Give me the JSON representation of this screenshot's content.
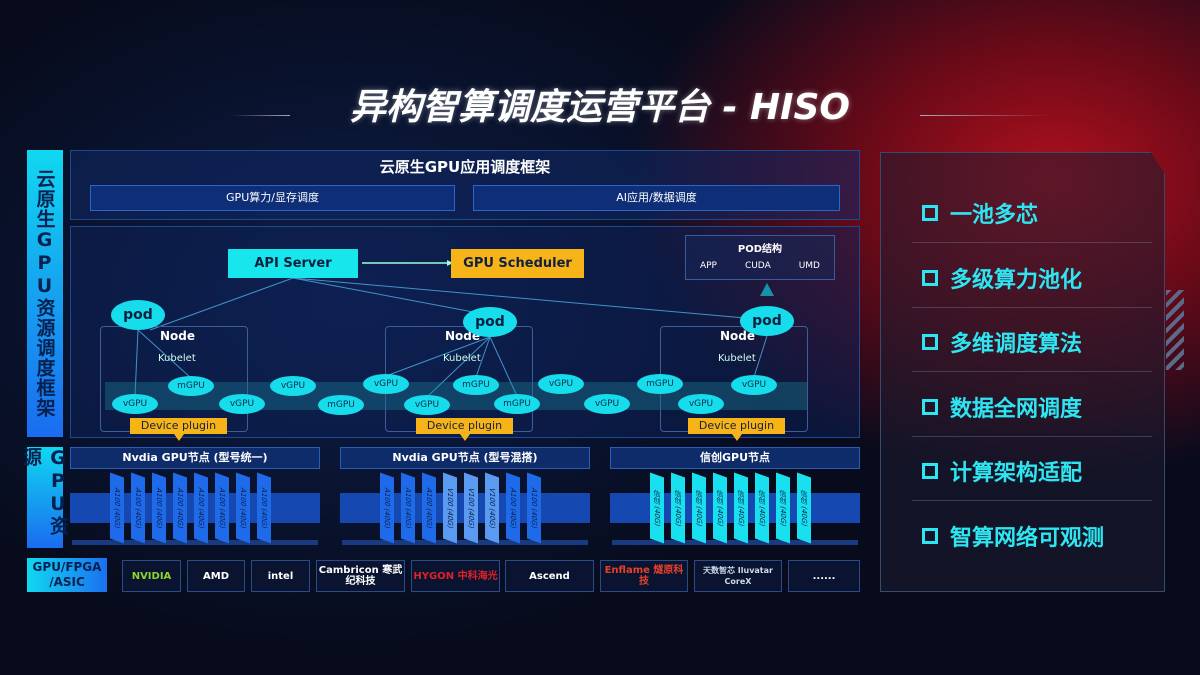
{
  "title": "异构智算调度运营平台 - HISO",
  "left_labels": {
    "framework": "云原生GPU资源调度框架",
    "resources": "GPU资源",
    "hardware": "GPU/FPGA /ASIC"
  },
  "framework": {
    "header": "云原生GPU应用调度框架",
    "bars": [
      "GPU算力/显存调度",
      "AI应用/数据调度"
    ]
  },
  "diagram": {
    "api_server": "API Server",
    "gpu_scheduler": "GPU Scheduler",
    "pod_structure": {
      "title": "POD结构",
      "items": [
        "APP",
        "CUDA",
        "UMD"
      ]
    },
    "pod": "pod",
    "node": "Node",
    "kubelet": "Kubelet",
    "device_plugin": "Device plugin",
    "virtual_gpus": [
      "vGPU",
      "mGPU",
      "vGPU",
      "vGPU",
      "mGPU",
      "vGPU",
      "vGPU",
      "mGPU",
      "mGPU",
      "vGPU",
      "vGPU",
      "mGPU",
      "vGPU",
      "vGPU"
    ]
  },
  "gpu_nodes": [
    {
      "title": "Nvdia GPU节点 (型号统一)",
      "cards": [
        "A100 (40G)",
        "A100 (40G)",
        "A100 (40G)",
        "A100 (40G)",
        "A100 (40G)",
        "A100 (40G)",
        "A100 (40G)",
        "A100 (40G)"
      ],
      "color": "#1e6ae8"
    },
    {
      "title": "Nvdia GPU节点 (型号混搭)",
      "cards": [
        "A100 (40G)",
        "A100 (40G)",
        "A100 (40G)",
        "V100 (40G)",
        "V100 (40G)",
        "V100 (40G)",
        "A100 (40G)",
        "A100 (40G)"
      ],
      "color": "#1e6ae8"
    },
    {
      "title": "信创GPU节点",
      "cards": [
        "信创 (40G)",
        "信创 (40G)",
        "信创 (40G)",
        "信创 (40G)",
        "信创 (40G)",
        "信创 (40G)",
        "信创 (40G)",
        "信创 (40G)"
      ],
      "color": "#18e0ee"
    }
  ],
  "vendors": [
    "NVIDIA",
    "AMD",
    "intel",
    "Cambricon 寒武纪科技",
    "HYGON 中科海光",
    "Ascend",
    "Enflame 燧原科技",
    "天数智芯 Iluvatar CoreX",
    "......"
  ],
  "features": [
    "一池多芯",
    "多级算力池化",
    "多维调度算法",
    "数据全网调度",
    "计算架构适配",
    "智算网络可观测"
  ],
  "colors": {
    "accent": "#17e6ec",
    "highlight": "#f6b418",
    "brand_red": "#b0101e"
  }
}
